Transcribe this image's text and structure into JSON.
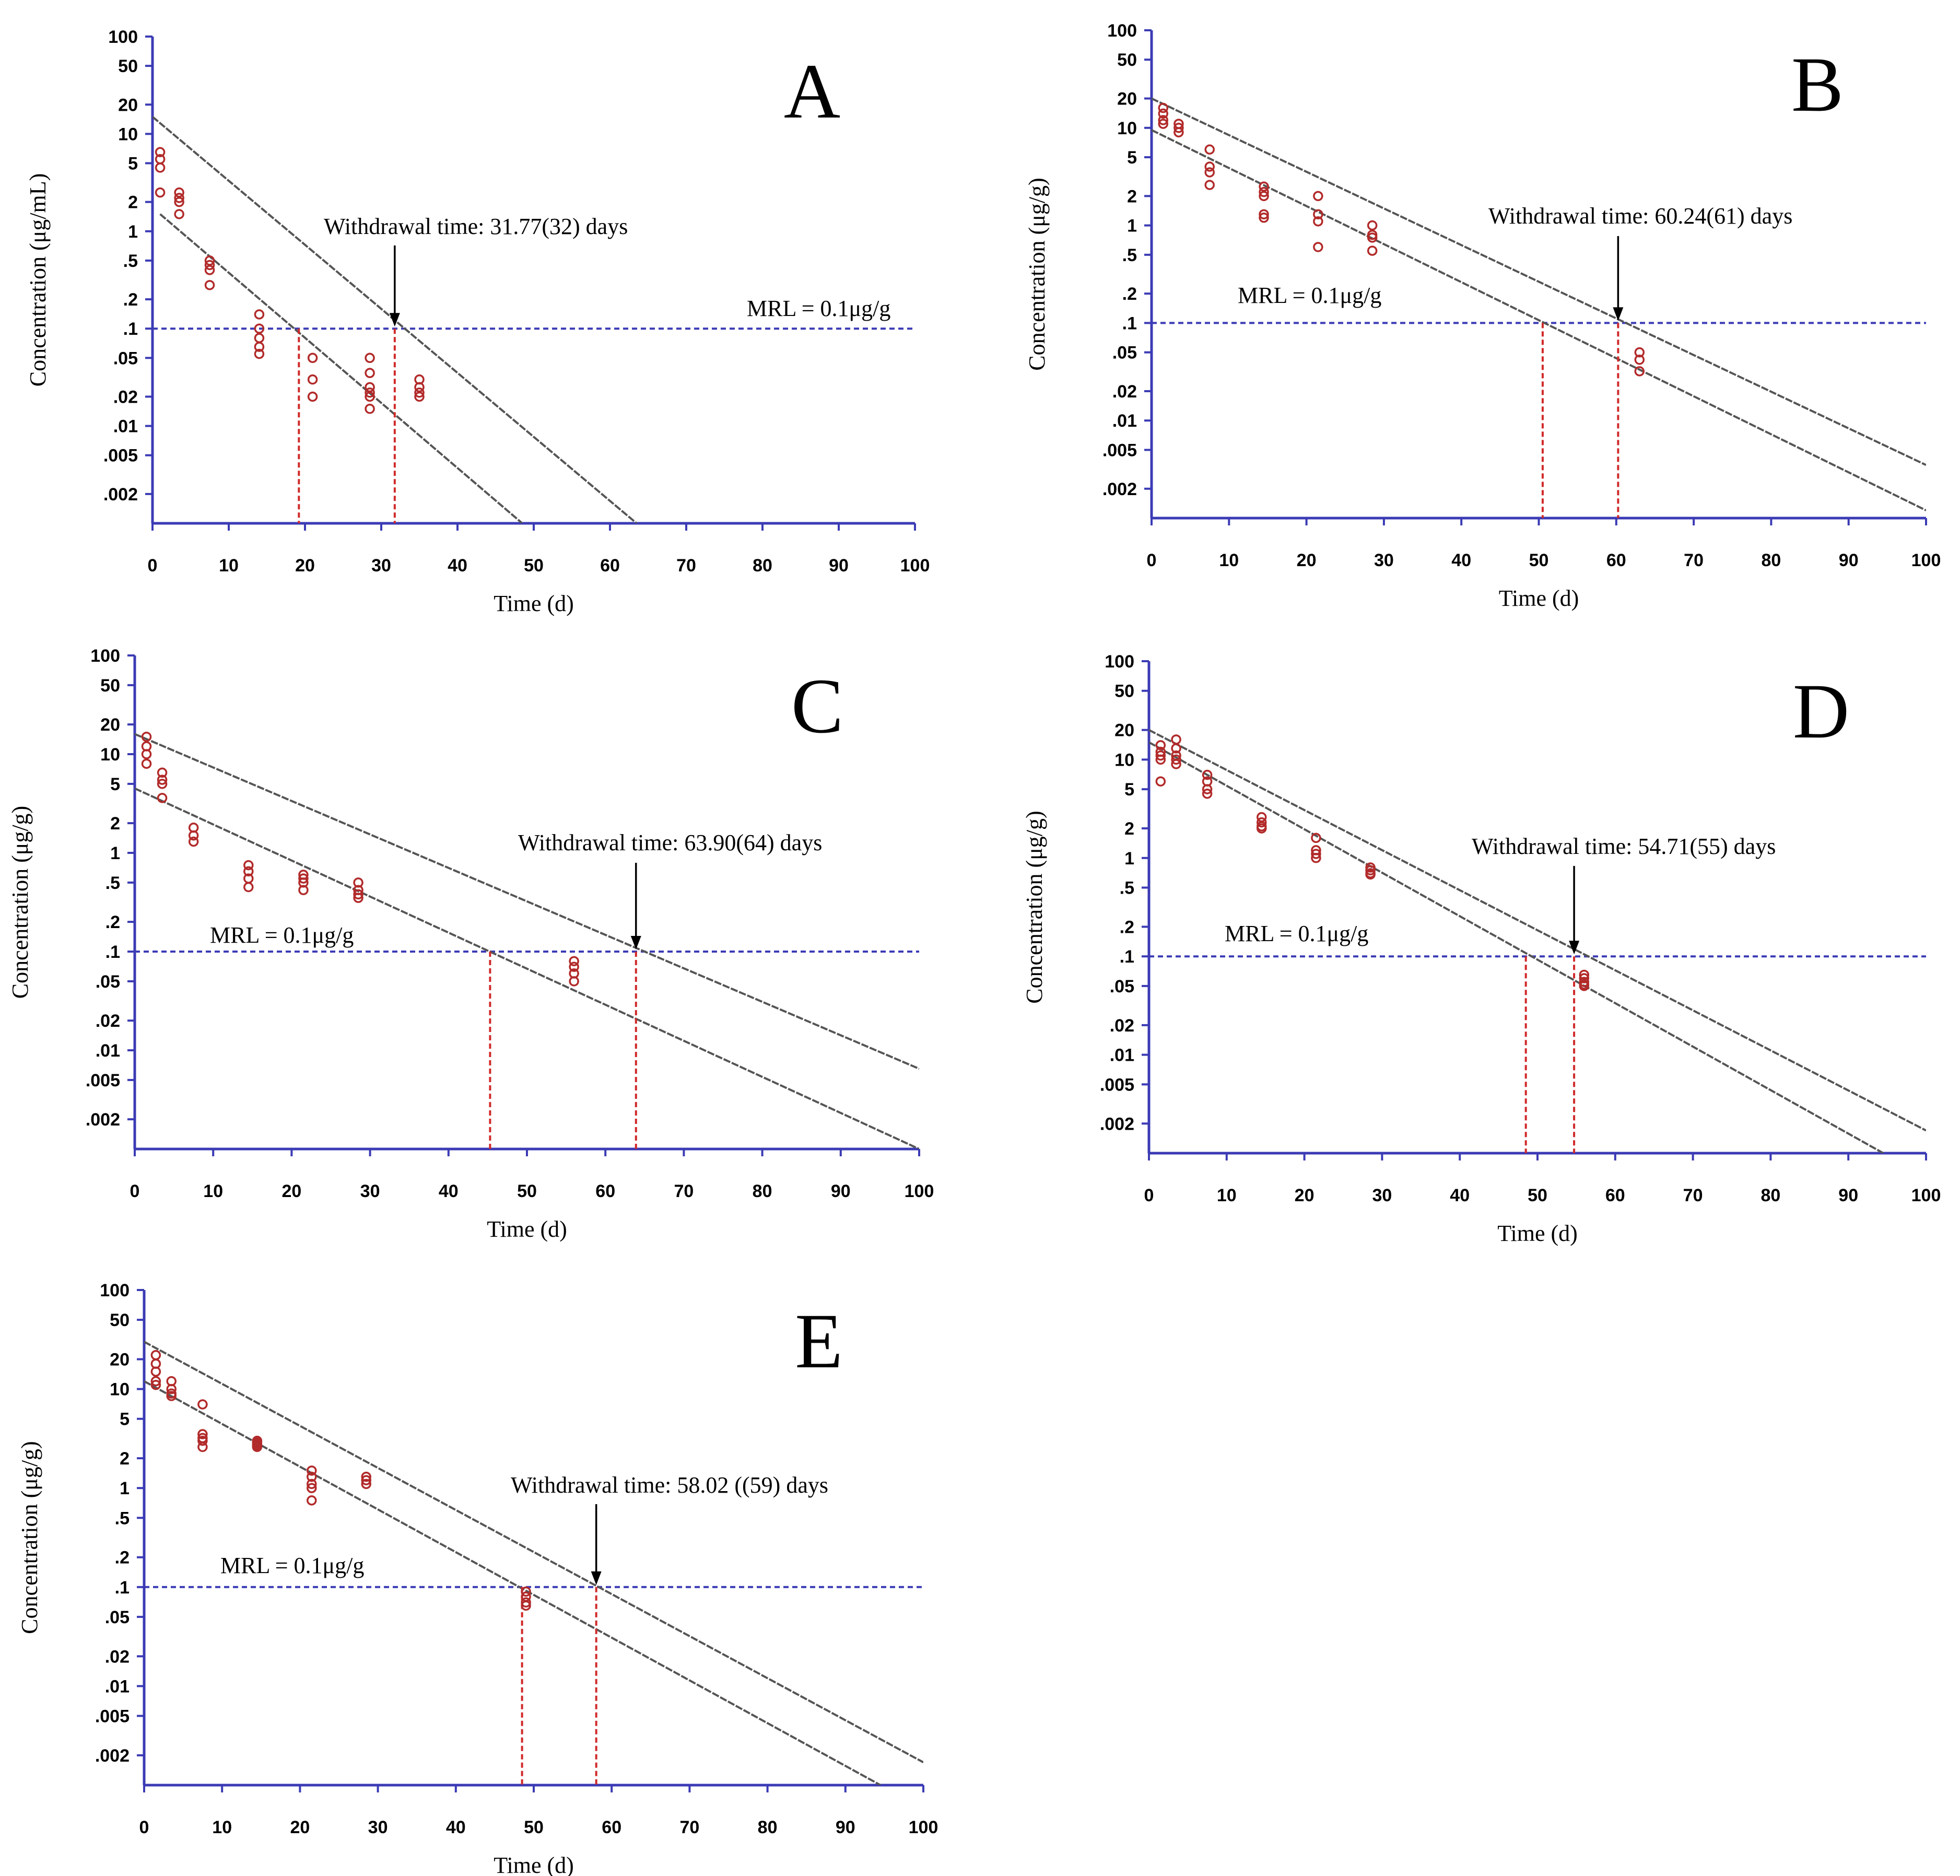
{
  "chart_data": [
    {
      "type": "scatter",
      "panel_label": "A",
      "ylabel": "Concentration (μg/mL)",
      "xlabel": "Time (d)",
      "yscale": "log",
      "ylim": [
        0.001,
        100
      ],
      "xlim": [
        0,
        100
      ],
      "xticks": [
        "0",
        "10",
        "20",
        "30",
        "40",
        "50",
        "60",
        "70",
        "80",
        "90",
        "100"
      ],
      "yticks": [
        "100",
        "50",
        "20",
        "10",
        "5",
        "2",
        "1",
        ".5",
        ".2",
        ".1",
        ".05",
        ".02",
        ".01",
        ".005",
        ".002"
      ],
      "withdrawal_text": "Withdrawal time: 31.77(32) days",
      "mrl_text": "MRL = 0.1μg/g",
      "mrl": 0.1,
      "withdrawal_time": 31.77,
      "regression_cross": 19.2,
      "regression_line": [
        [
          1,
          1.5
        ],
        [
          48.5,
          0.001
        ]
      ],
      "tolerance_line": [
        [
          0,
          15
        ],
        [
          63.5,
          0.001
        ]
      ],
      "points": [
        [
          1,
          6.5
        ],
        [
          1,
          5.5
        ],
        [
          1,
          4.5
        ],
        [
          1,
          2.5
        ],
        [
          3.5,
          2.5
        ],
        [
          3.5,
          2.2
        ],
        [
          3.5,
          2.0
        ],
        [
          3.5,
          1.5
        ],
        [
          7.5,
          0.5
        ],
        [
          7.5,
          0.45
        ],
        [
          7.5,
          0.4
        ],
        [
          7.5,
          0.28
        ],
        [
          14,
          0.14
        ],
        [
          14,
          0.1
        ],
        [
          14,
          0.08
        ],
        [
          14,
          0.065
        ],
        [
          14,
          0.055
        ],
        [
          21,
          0.05
        ],
        [
          21,
          0.03
        ],
        [
          21,
          0.02
        ],
        [
          28.5,
          0.05
        ],
        [
          28.5,
          0.035
        ],
        [
          28.5,
          0.025
        ],
        [
          28.5,
          0.022
        ],
        [
          28.5,
          0.02
        ],
        [
          28.5,
          0.015
        ],
        [
          35,
          0.03
        ],
        [
          35,
          0.025
        ],
        [
          35,
          0.022
        ],
        [
          35,
          0.02
        ]
      ]
    },
    {
      "type": "scatter",
      "panel_label": "B",
      "ylabel": "Concentration (μg/g)",
      "xlabel": "Time (d)",
      "yscale": "log",
      "ylim": [
        0.001,
        100
      ],
      "xlim": [
        0,
        100
      ],
      "xticks": [
        "0",
        "10",
        "20",
        "30",
        "40",
        "50",
        "60",
        "70",
        "80",
        "90",
        "100"
      ],
      "yticks": [
        "100",
        "50",
        "20",
        "10",
        "5",
        "2",
        "1",
        ".5",
        ".2",
        ".1",
        ".05",
        ".02",
        ".01",
        ".005",
        ".002"
      ],
      "withdrawal_text": "Withdrawal time: 60.24(61) days",
      "mrl_text": "MRL = 0.1μg/g",
      "mrl": 0.1,
      "withdrawal_time": 60.24,
      "regression_cross": 50.5,
      "regression_line": [
        [
          0,
          9.5
        ],
        [
          100,
          0.0012
        ]
      ],
      "tolerance_line": [
        [
          0,
          20
        ],
        [
          100,
          0.0035
        ]
      ],
      "points": [
        [
          1.5,
          16
        ],
        [
          1.5,
          14
        ],
        [
          1.5,
          12
        ],
        [
          1.5,
          11
        ],
        [
          3.5,
          11
        ],
        [
          3.5,
          10
        ],
        [
          3.5,
          9
        ],
        [
          7.5,
          6
        ],
        [
          7.5,
          4
        ],
        [
          7.5,
          3.5
        ],
        [
          7.5,
          2.6
        ],
        [
          14.5,
          2.5
        ],
        [
          14.5,
          2.2
        ],
        [
          14.5,
          2
        ],
        [
          14.5,
          1.3
        ],
        [
          14.5,
          1.2
        ],
        [
          21.5,
          2
        ],
        [
          21.5,
          1.3
        ],
        [
          21.5,
          1.1
        ],
        [
          21.5,
          0.6
        ],
        [
          28.5,
          1
        ],
        [
          28.5,
          0.8
        ],
        [
          28.5,
          0.75
        ],
        [
          28.5,
          0.55
        ],
        [
          63,
          0.05
        ],
        [
          63,
          0.042
        ],
        [
          63,
          0.032
        ]
      ]
    },
    {
      "type": "scatter",
      "panel_label": "C",
      "ylabel": "Concentration (μg/g)",
      "xlabel": "Time (d)",
      "yscale": "log",
      "ylim": [
        0.001,
        100
      ],
      "xlim": [
        0,
        100
      ],
      "xticks": [
        "0",
        "10",
        "20",
        "30",
        "40",
        "50",
        "60",
        "70",
        "80",
        "90",
        "100"
      ],
      "yticks": [
        "100",
        "50",
        "20",
        "10",
        "5",
        "2",
        "1",
        ".5",
        ".2",
        ".1",
        ".05",
        ".02",
        ".01",
        ".005",
        ".002"
      ],
      "withdrawal_text": "Withdrawal time: 63.90(64) days",
      "mrl_text": "MRL = 0.1μg/g",
      "mrl": 0.1,
      "withdrawal_time": 63.9,
      "regression_cross": 45.3,
      "regression_line": [
        [
          0,
          4.5
        ],
        [
          100,
          0.001
        ]
      ],
      "tolerance_line": [
        [
          0,
          16
        ],
        [
          100,
          0.0065
        ]
      ],
      "points": [
        [
          1.5,
          15
        ],
        [
          1.5,
          12
        ],
        [
          1.5,
          10
        ],
        [
          1.5,
          8
        ],
        [
          3.5,
          6.5
        ],
        [
          3.5,
          5.5
        ],
        [
          3.5,
          5
        ],
        [
          3.5,
          3.6
        ],
        [
          7.5,
          1.8
        ],
        [
          7.5,
          1.5
        ],
        [
          7.5,
          1.3
        ],
        [
          14.5,
          0.75
        ],
        [
          14.5,
          0.65
        ],
        [
          14.5,
          0.55
        ],
        [
          14.5,
          0.45
        ],
        [
          21.5,
          0.6
        ],
        [
          21.5,
          0.55
        ],
        [
          21.5,
          0.5
        ],
        [
          21.5,
          0.42
        ],
        [
          28.5,
          0.5
        ],
        [
          28.5,
          0.42
        ],
        [
          28.5,
          0.38
        ],
        [
          28.5,
          0.35
        ],
        [
          56,
          0.08
        ],
        [
          56,
          0.07
        ],
        [
          56,
          0.06
        ],
        [
          56,
          0.05
        ]
      ]
    },
    {
      "type": "scatter",
      "panel_label": "D",
      "ylabel": "Concentration (μg/g)",
      "xlabel": "Time (d)",
      "yscale": "log",
      "ylim": [
        0.001,
        100
      ],
      "xlim": [
        0,
        100
      ],
      "xticks": [
        "0",
        "10",
        "20",
        "30",
        "40",
        "50",
        "60",
        "70",
        "80",
        "90",
        "100"
      ],
      "yticks": [
        "100",
        "50",
        "20",
        "10",
        "5",
        "2",
        "1",
        ".5",
        ".2",
        ".1",
        ".05",
        ".02",
        ".01",
        ".005",
        ".002"
      ],
      "withdrawal_text": "Withdrawal time: 54.71(55) days",
      "mrl_text": "MRL = 0.1μg/g",
      "mrl": 0.1,
      "withdrawal_time": 54.71,
      "regression_cross": 48.5,
      "regression_line": [
        [
          0,
          15
        ],
        [
          94.5,
          0.001
        ]
      ],
      "tolerance_line": [
        [
          0,
          20
        ],
        [
          100,
          0.0017
        ]
      ],
      "points": [
        [
          1.5,
          14
        ],
        [
          1.5,
          12
        ],
        [
          1.5,
          11
        ],
        [
          1.5,
          10
        ],
        [
          1.5,
          6
        ],
        [
          3.5,
          16
        ],
        [
          3.5,
          13
        ],
        [
          3.5,
          11
        ],
        [
          3.5,
          10
        ],
        [
          3.5,
          9
        ],
        [
          7.5,
          7
        ],
        [
          7.5,
          6
        ],
        [
          7.5,
          5
        ],
        [
          7.5,
          4.5
        ],
        [
          14.5,
          2.6
        ],
        [
          14.5,
          2.3
        ],
        [
          14.5,
          2.1
        ],
        [
          14.5,
          2
        ],
        [
          21.5,
          1.6
        ],
        [
          21.5,
          1.2
        ],
        [
          21.5,
          1.1
        ],
        [
          21.5,
          1
        ],
        [
          28.5,
          0.8
        ],
        [
          28.5,
          0.75
        ],
        [
          28.5,
          0.7
        ],
        [
          28.5,
          0.68
        ],
        [
          56,
          0.065
        ],
        [
          56,
          0.06
        ],
        [
          56,
          0.055
        ],
        [
          56,
          0.052
        ],
        [
          56,
          0.05
        ]
      ]
    },
    {
      "type": "scatter",
      "panel_label": "E",
      "ylabel": "Concentration (μg/g)",
      "xlabel": "Time (d)",
      "yscale": "log",
      "ylim": [
        0.001,
        100
      ],
      "xlim": [
        0,
        100
      ],
      "xticks": [
        "0",
        "10",
        "20",
        "30",
        "40",
        "50",
        "60",
        "70",
        "80",
        "90",
        "100"
      ],
      "yticks": [
        "100",
        "50",
        "20",
        "10",
        "5",
        "2",
        "1",
        ".5",
        ".2",
        ".1",
        ".05",
        ".02",
        ".01",
        ".005",
        ".002"
      ],
      "withdrawal_text": "Withdrawal time: 58.02 ((59) days",
      "mrl_text": "MRL = 0.1μg/g",
      "mrl": 0.1,
      "withdrawal_time": 58.02,
      "regression_cross": 48.5,
      "regression_line": [
        [
          0,
          12
        ],
        [
          94.5,
          0.001
        ]
      ],
      "tolerance_line": [
        [
          0,
          30
        ],
        [
          100,
          0.0017
        ]
      ],
      "points": [
        [
          1.5,
          22
        ],
        [
          1.5,
          18
        ],
        [
          1.5,
          15
        ],
        [
          1.5,
          12
        ],
        [
          1.5,
          11
        ],
        [
          3.5,
          12
        ],
        [
          3.5,
          10
        ],
        [
          3.5,
          9
        ],
        [
          3.5,
          8.5
        ],
        [
          7.5,
          7
        ],
        [
          7.5,
          3.5
        ],
        [
          7.5,
          3.2
        ],
        [
          7.5,
          3
        ],
        [
          7.5,
          2.6
        ],
        [
          14.5,
          3
        ],
        [
          14.5,
          2.9
        ],
        [
          14.5,
          2.8
        ],
        [
          14.5,
          2.7
        ],
        [
          14.5,
          2.6
        ],
        [
          21.5,
          1.5
        ],
        [
          21.5,
          1.3
        ],
        [
          21.5,
          1.1
        ],
        [
          21.5,
          1
        ],
        [
          21.5,
          0.75
        ],
        [
          28.5,
          1.3
        ],
        [
          28.5,
          1.2
        ],
        [
          28.5,
          1.1
        ],
        [
          49,
          0.09
        ],
        [
          49,
          0.08
        ],
        [
          49,
          0.07
        ],
        [
          49,
          0.065
        ]
      ]
    }
  ],
  "colors": {
    "axis": "#3b3bb5",
    "mrl_line": "#3b3bb5",
    "points": "#b22a2a",
    "drop_lines": "#d02a2a",
    "fit_lines": "#555555"
  }
}
